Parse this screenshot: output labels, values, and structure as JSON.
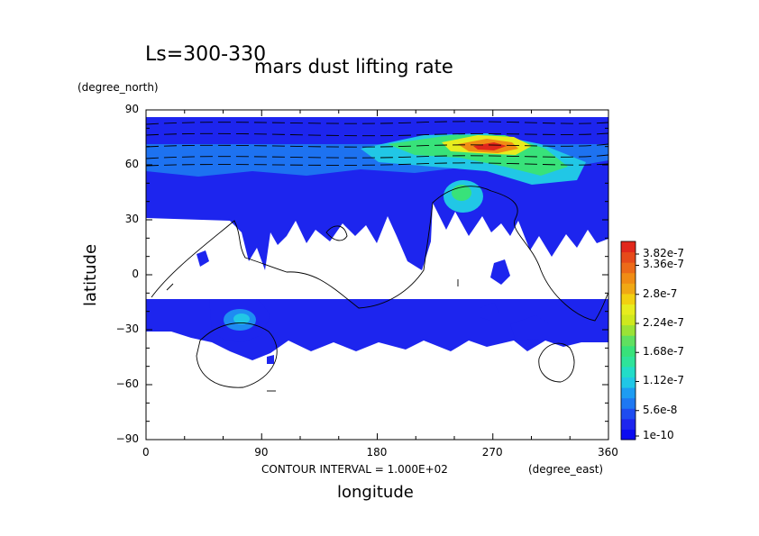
{
  "title": "mars dust lifting rate",
  "subtitle": "Ls=300-330",
  "units_y": "(degree_north)",
  "units_x": "(degree_east)",
  "xlabel": "longitude",
  "ylabel": "latitude",
  "contour_note": "CONTOUR INTERVAL = 1.000E+02",
  "chart_data": {
    "type": "heatmap",
    "title": "mars dust lifting rate",
    "subtitle": "Ls=300-330",
    "xlabel": "longitude",
    "ylabel": "latitude",
    "xlim": [
      0,
      360
    ],
    "ylim": [
      -90,
      90
    ],
    "xticks": [
      0,
      90,
      180,
      270,
      360
    ],
    "yticks": [
      -90,
      -60,
      -30,
      0,
      30,
      60,
      90
    ],
    "colorbar": {
      "min_label": "1e-10",
      "max": 3.82e-07,
      "labels": [
        "1e-10",
        "5.6e-8",
        "1.12e-7",
        "1.68e-7",
        "2.24e-7",
        "2.8e-7",
        "3.36e-7",
        "3.82e-7"
      ],
      "values": [
        1e-10,
        5.6e-08,
        1.12e-07,
        1.68e-07,
        2.24e-07,
        2.8e-07,
        3.36e-07,
        3.82e-07
      ]
    },
    "hotspots": [
      {
        "lon": 270,
        "lat": 68,
        "value": 3.5e-07
      },
      {
        "lon": 245,
        "lat": 45,
        "value": 1.9e-07
      },
      {
        "lon": 75,
        "lat": -25,
        "value": 1.1e-07
      },
      {
        "lon": 205,
        "lat": 70,
        "value": 1.7e-07
      }
    ]
  }
}
